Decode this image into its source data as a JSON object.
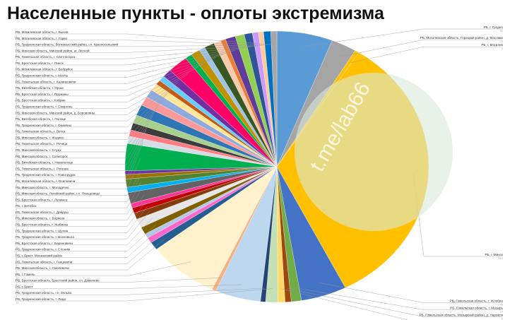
{
  "chart_data": {
    "type": "pie",
    "title": "Населенные пункты - оплоты экстремизма",
    "watermark": "t.me/lab66",
    "categories": [
      "РБ, г. Гродно",
      "РБ, Могилевская область, Горецкий район, д. Маслаки",
      "РБ, г. Могилев",
      "РБ, г. Минск",
      "РБ, Гомельская область, г. Жлобин",
      "РБ, Гомельская область, г. Мозырь",
      "РБ, Гомельская область, Мозырский район, д. Наровля",
      "РБ, Брестская область, г. Ивацевичи",
      "РБ, Гродненская область, г. Лида",
      "РБ, Гродненская область, г.п. Зельва",
      "РБ, г. Брест",
      "РБ, Брестская область, Брестский район, г.п. Домачево",
      "РБ, г. Гомель",
      "РБ, Минская область, г. Смолевичи",
      "РБ, Гомельская область, г. Ганцевичи",
      "РБ, г. Брест, Московский район",
      "РБ, Гродненская область, г. Слоним",
      "РБ, Брестская область, г. Барановичи",
      "РБ, Гродненская область, г. Волковыск",
      "РБ, Гродненская область, г. Щучин",
      "РБ, Брестская область, г. Жабинка",
      "РБ, Минская область, г. Борисов",
      "РБ, Гомельская область, г. Добруш",
      "РБ, г. Витебск",
      "РБ, Брестская область, г. Лунинец",
      "РБ, Минская область, Логойский район, г.п. Плещеницы",
      "РБ, Минская область, г. Молодечно",
      "РБ, Могилевская область, г. Осиповичи",
      "РБ, Гродненская область, г. Новогрудок",
      "РБ, Гомельская область, г. Рогачев",
      "РБ, Витебская область, г. Новополоцк",
      "РБ, Минская область, г. Солигорск",
      "РБ, Минская область, г. Слуцк",
      "РБ, Гомельская область, г. Речица",
      "РБ, Минская область, г. Жодино",
      "РБ, Гомельская область, г. Ветка",
      "РБ, Гродненская область, г. Ошмяны",
      "РБ, Витебская область, г. Полоцк",
      "РБ, Минская область, Минский район, д. Боровляны",
      "РБ, Гродненская область, г. Сморгонь",
      "РБ, Брестская область, г. Кобрин",
      "РБ, Брестская область, г. Пружаны",
      "РБ, Витебская область, г. Орша",
      "РБ, Гомельская область, г. Калинковичи",
      "РБ, Гродненская область, г. Мосты",
      "РБ, Могилевская область, г. Бобруйск",
      "РБ, Брестская область, г. Пинск",
      "РБ, Гомельская область, г. Светлогорск",
      "РБ, Минская область, Минский район, аг. Лесной",
      "РБ, Гродненская область, Волковысский район, г.п. Красносельский",
      "РБ, Могилевская область, г. Горки",
      "РБ, Могилевская область, г. Быхов"
    ],
    "values": [
      55,
      25,
      4,
      310,
      45,
      10,
      6,
      7,
      12,
      5,
      45,
      4,
      70,
      9,
      6,
      5,
      8,
      10,
      7,
      6,
      5,
      12,
      6,
      9,
      5,
      4,
      30,
      8,
      7,
      8,
      9,
      12,
      10,
      9,
      8,
      5,
      6,
      9,
      20,
      7,
      9,
      6,
      10,
      7,
      5,
      10,
      9,
      8,
      6,
      5,
      7,
      6
    ],
    "colors": [
      "#5b9bd5",
      "#a5a5a5",
      "#ffc000",
      "#ffc000",
      "#4472c4",
      "#70ad47",
      "#9e480e",
      "#ffd966",
      "#c5e0b4",
      "#264478",
      "#bdd7ee",
      "#f4b183",
      "#fff2cc",
      "#255e91",
      "#ff66cc",
      "#b4c7e7",
      "#7f6000",
      "#e7e6e6",
      "#843c0c",
      "#c00000",
      "#ff3399",
      "#636363",
      "#00b0f0",
      "#548235",
      "#997300",
      "#7030a0",
      "#00b050",
      "#d6dce5",
      "#ff7c80",
      "#3c3c3c",
      "#a9d18e",
      "#2e75b6",
      "#ff9999",
      "#8faadc",
      "#ffe699",
      "#c55a11",
      "#66ccff",
      "#7030a0",
      "#ff0066",
      "#00b050",
      "#bf9000",
      "#9dc3e6",
      "#385723",
      "#f8cbad",
      "#ed7d31",
      "#5e3c99",
      "#92d050",
      "#2f5597",
      "#cc99ff",
      "#ffcc99",
      "#0070c0",
      "#a6a6a6"
    ]
  }
}
